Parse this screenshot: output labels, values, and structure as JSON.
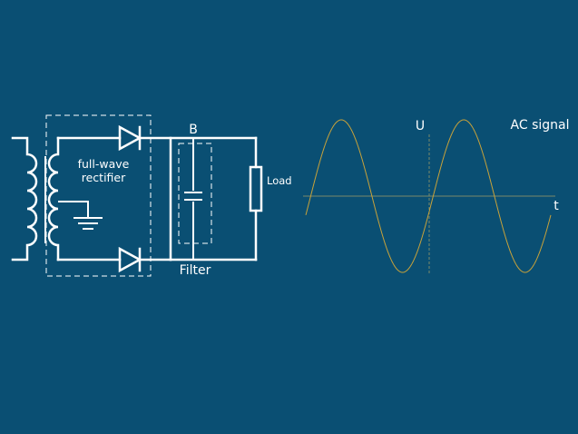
{
  "circuit": {
    "rectifier_label_line1": "full-wave",
    "rectifier_label_line2": "rectifier",
    "node_label": "B",
    "load_label": "Load",
    "filter_label": "Filter"
  },
  "signal": {
    "y_axis_label": "U",
    "x_axis_label": "t",
    "title": "AC signal",
    "wave_color": "#c8a23a",
    "axis_color": "#7a8a6a",
    "cycles_shown": 2
  },
  "colors": {
    "background": "#0a4f73",
    "foreground": "#ffffff"
  }
}
